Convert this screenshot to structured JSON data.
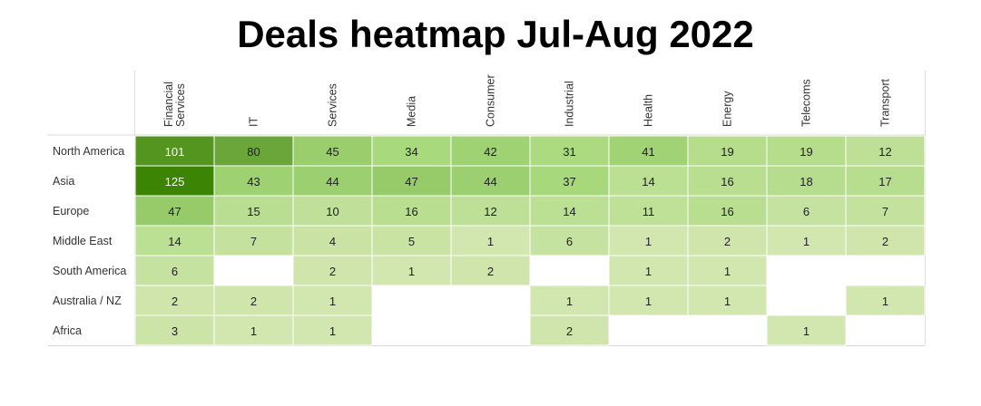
{
  "title": "Deals heatmap Jul-Aug 2022",
  "chart_data": {
    "type": "heatmap",
    "title": "Deals heatmap Jul-Aug 2022",
    "columns": [
      "Financial Services",
      "IT",
      "Services",
      "Media",
      "Consumer",
      "Industrial",
      "Health",
      "Energy",
      "Telecoms",
      "Transport"
    ],
    "rows": [
      "North America",
      "Asia",
      "Europe",
      "Middle East",
      "South America",
      "Australia / NZ",
      "Africa"
    ],
    "values": [
      [
        101,
        80,
        45,
        34,
        42,
        31,
        41,
        19,
        19,
        12
      ],
      [
        125,
        43,
        44,
        47,
        44,
        37,
        14,
        16,
        18,
        17
      ],
      [
        47,
        15,
        10,
        16,
        12,
        14,
        11,
        16,
        6,
        7
      ],
      [
        14,
        7,
        4,
        5,
        1,
        6,
        1,
        2,
        1,
        2
      ],
      [
        6,
        null,
        2,
        1,
        2,
        null,
        1,
        1,
        null,
        null
      ],
      [
        2,
        2,
        1,
        null,
        null,
        1,
        1,
        1,
        null,
        1
      ],
      [
        3,
        1,
        1,
        null,
        null,
        2,
        null,
        null,
        1,
        null
      ]
    ],
    "color_scale": {
      "light": "#dbe9b9",
      "mid": "#a6d87a",
      "strong": "#5f9c2d",
      "max": "#3c8504"
    },
    "empty_color": "#ffffff",
    "text_dark": "#222222",
    "text_light": "#ffffff"
  }
}
